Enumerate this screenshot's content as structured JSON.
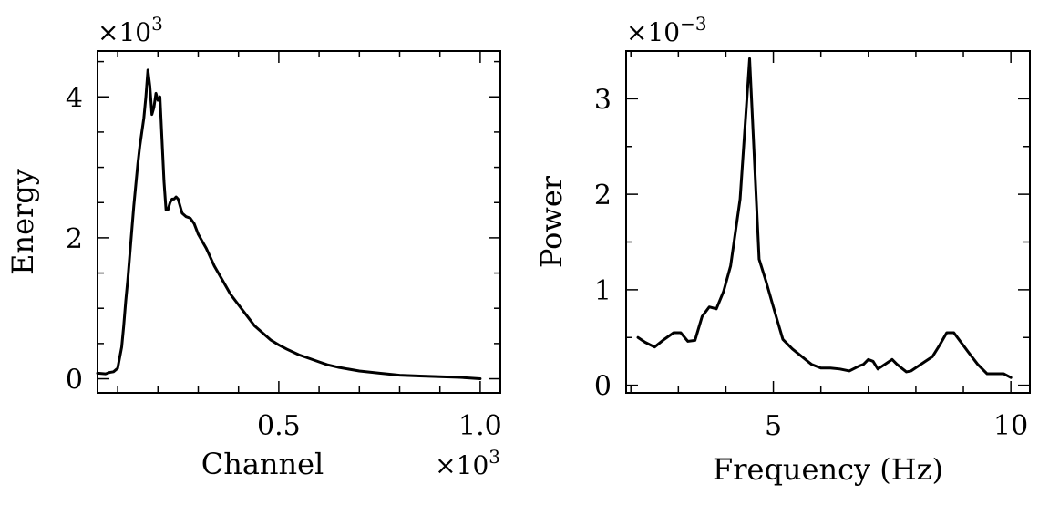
{
  "chart_data": [
    {
      "type": "line",
      "xlabel": "Channel",
      "ylabel": "Energy",
      "x_multiplier": "×10",
      "x_exponent": "3",
      "y_multiplier": "×10",
      "y_exponent": "3",
      "xlim": [
        0.05,
        1.05
      ],
      "ylim": [
        -0.2,
        4.65
      ],
      "x_ticks": [
        {
          "value": 0.5,
          "label": "0.5"
        },
        {
          "value": 1.0,
          "label": "1.0"
        }
      ],
      "y_ticks": [
        {
          "value": 0,
          "label": "0"
        },
        {
          "value": 2,
          "label": "2"
        },
        {
          "value": 4,
          "label": "4"
        }
      ],
      "x_minor_step": 0.1,
      "y_minor_step": 0.5,
      "series": [
        {
          "color": "#000000",
          "x": [
            0.05,
            0.07,
            0.08,
            0.09,
            0.1,
            0.11,
            0.115,
            0.12,
            0.125,
            0.13,
            0.135,
            0.14,
            0.145,
            0.15,
            0.155,
            0.16,
            0.165,
            0.17,
            0.175,
            0.18,
            0.185,
            0.19,
            0.195,
            0.2,
            0.205,
            0.21,
            0.215,
            0.22,
            0.225,
            0.23,
            0.235,
            0.24,
            0.245,
            0.25,
            0.26,
            0.27,
            0.28,
            0.29,
            0.3,
            0.32,
            0.34,
            0.36,
            0.38,
            0.4,
            0.42,
            0.44,
            0.46,
            0.48,
            0.5,
            0.52,
            0.55,
            0.58,
            0.6,
            0.62,
            0.65,
            0.7,
            0.75,
            0.8,
            0.85,
            0.9,
            0.95,
            1.0
          ],
          "y": [
            0.08,
            0.07,
            0.09,
            0.1,
            0.15,
            0.45,
            0.75,
            1.1,
            1.4,
            1.75,
            2.1,
            2.45,
            2.75,
            3.05,
            3.3,
            3.5,
            3.7,
            4.0,
            4.38,
            4.15,
            3.75,
            3.85,
            4.05,
            3.95,
            4.0,
            3.4,
            2.8,
            2.4,
            2.4,
            2.5,
            2.55,
            2.55,
            2.58,
            2.55,
            2.35,
            2.3,
            2.28,
            2.2,
            2.05,
            1.85,
            1.6,
            1.4,
            1.2,
            1.05,
            0.9,
            0.75,
            0.65,
            0.55,
            0.48,
            0.42,
            0.34,
            0.28,
            0.24,
            0.2,
            0.16,
            0.11,
            0.08,
            0.05,
            0.04,
            0.03,
            0.02,
            0.0
          ]
        }
      ]
    },
    {
      "type": "line",
      "xlabel": "Frequency (Hz)",
      "ylabel": "Power",
      "x_multiplier": "",
      "x_exponent": "",
      "y_multiplier": "×10",
      "y_exponent": "−3",
      "xlim": [
        1.9,
        10.4
      ],
      "ylim": [
        -0.08,
        3.5
      ],
      "x_ticks": [
        {
          "value": 5,
          "label": "5"
        },
        {
          "value": 10,
          "label": "10"
        }
      ],
      "y_ticks": [
        {
          "value": 0,
          "label": "0"
        },
        {
          "value": 1,
          "label": "1"
        },
        {
          "value": 2,
          "label": "2"
        },
        {
          "value": 3,
          "label": "3"
        }
      ],
      "x_minor_step": 1,
      "y_minor_step": 0.5,
      "series": [
        {
          "color": "#000000",
          "x": [
            2.15,
            2.3,
            2.5,
            2.7,
            2.9,
            3.05,
            3.2,
            3.35,
            3.5,
            3.65,
            3.8,
            3.95,
            4.1,
            4.3,
            4.5,
            4.7,
            4.85,
            5.0,
            5.2,
            5.4,
            5.6,
            5.8,
            6.0,
            6.2,
            6.4,
            6.6,
            6.8,
            6.9,
            7.0,
            7.1,
            7.2,
            7.35,
            7.5,
            7.6,
            7.7,
            7.8,
            7.9,
            8.05,
            8.2,
            8.35,
            8.5,
            8.65,
            8.8,
            8.95,
            9.1,
            9.3,
            9.5,
            9.7,
            9.85,
            10.0
          ],
          "y": [
            0.5,
            0.45,
            0.4,
            0.48,
            0.55,
            0.55,
            0.46,
            0.47,
            0.72,
            0.82,
            0.8,
            0.98,
            1.25,
            1.95,
            3.42,
            1.32,
            1.08,
            0.82,
            0.48,
            0.38,
            0.3,
            0.22,
            0.18,
            0.18,
            0.17,
            0.15,
            0.2,
            0.22,
            0.27,
            0.25,
            0.17,
            0.22,
            0.27,
            0.22,
            0.18,
            0.14,
            0.15,
            0.2,
            0.25,
            0.3,
            0.42,
            0.55,
            0.55,
            0.45,
            0.35,
            0.22,
            0.12,
            0.12,
            0.12,
            0.08
          ]
        }
      ]
    }
  ]
}
